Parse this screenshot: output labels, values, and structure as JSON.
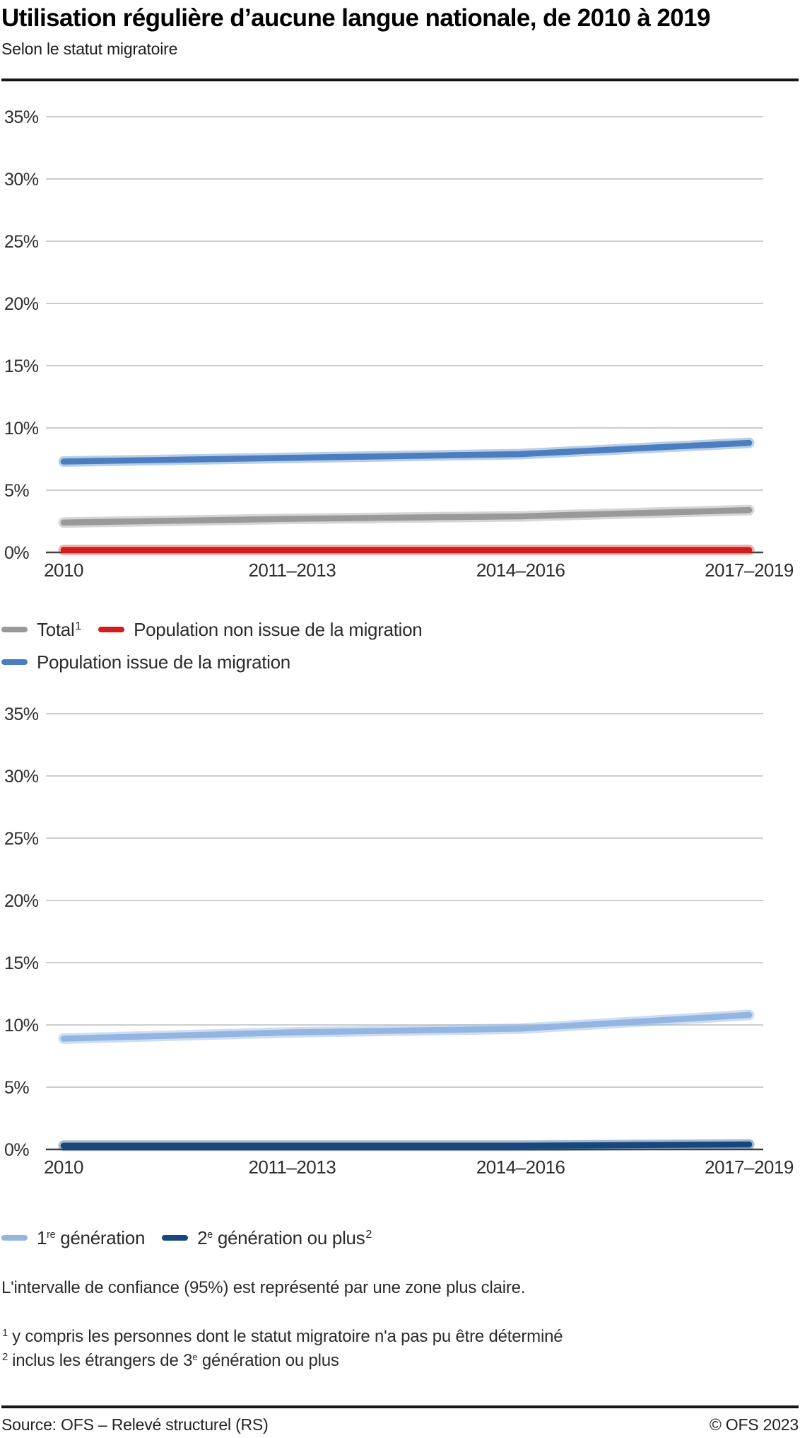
{
  "header": {
    "title": "Utilisation régulière d’aucune langue nationale, de 2010 à 2019",
    "subtitle": "Selon le statut migratoire"
  },
  "chart_data": [
    {
      "type": "line",
      "categories": [
        "2010",
        "2011–2013",
        "2014–2016",
        "2017–2019"
      ],
      "ylim": [
        0,
        35
      ],
      "ytick_step": 5,
      "ytick_suffix": "%",
      "grid": true,
      "legend_position": "bottom",
      "grid_color": "#cdcdcd",
      "axis_color": "#404040",
      "series": [
        {
          "name": "Total",
          "footnote": "1",
          "color": "#999999",
          "ci_color": "rgba(153,153,153,0.40)",
          "values": [
            2.4,
            2.7,
            2.9,
            3.4
          ]
        },
        {
          "name": "Population non issue de la migration",
          "color": "#d21c1c",
          "ci_color": "rgba(210,28,28,0.35)",
          "values": [
            0.2,
            0.2,
            0.2,
            0.2
          ]
        },
        {
          "name": "Population issue de la migration",
          "color": "#4a7ec0",
          "ci_color": "rgba(74,126,192,0.38)",
          "values": [
            7.3,
            7.6,
            7.9,
            8.8
          ]
        }
      ]
    },
    {
      "type": "line",
      "categories": [
        "2010",
        "2011–2013",
        "2014–2016",
        "2017–2019"
      ],
      "ylim": [
        0,
        35
      ],
      "ytick_step": 5,
      "ytick_suffix": "%",
      "grid": true,
      "legend_position": "bottom",
      "grid_color": "#cdcdcd",
      "axis_color": "#404040",
      "series": [
        {
          "name_head": "1",
          "name_sup": "re",
          "name_tail": " génération",
          "color": "#92b5e2",
          "ci_color": "rgba(146,181,226,0.45)",
          "values": [
            8.9,
            9.4,
            9.7,
            10.8
          ]
        },
        {
          "name_head": "2",
          "name_sup": "e",
          "name_tail": " génération ou plus",
          "footnote": "2",
          "color": "#16477f",
          "ci_color": "rgba(22,71,127,0.38)",
          "values": [
            0.3,
            0.3,
            0.3,
            0.4
          ]
        }
      ]
    }
  ],
  "confidence_note": "L'intervalle de confiance (95%) est représenté par une zone plus claire.",
  "footnotes": [
    {
      "mark": "1",
      "text": "y compris les personnes dont le statut migratoire n'a pas pu être déterminé"
    },
    {
      "mark": "2",
      "head": "inclus les étrangers de 3",
      "sup": "e",
      "tail": " génération ou plus"
    }
  ],
  "footer": {
    "source": "Source: OFS – Relevé structurel (RS)",
    "copyright": "© OFS 2023"
  }
}
